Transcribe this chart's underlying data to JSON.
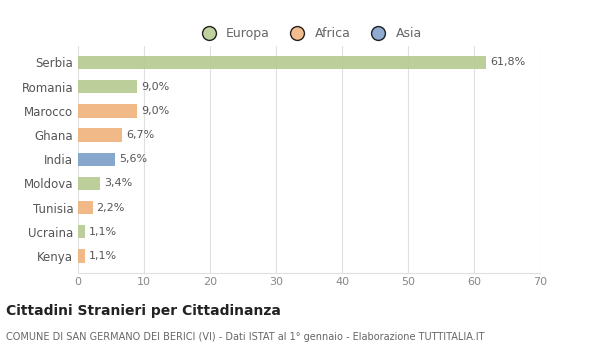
{
  "countries": [
    "Serbia",
    "Romania",
    "Marocco",
    "Ghana",
    "India",
    "Moldova",
    "Tunisia",
    "Ucraina",
    "Kenya"
  ],
  "values": [
    61.8,
    9.0,
    9.0,
    6.7,
    5.6,
    3.4,
    2.2,
    1.1,
    1.1
  ],
  "labels": [
    "61,8%",
    "9,0%",
    "9,0%",
    "6,7%",
    "5,6%",
    "3,4%",
    "2,2%",
    "1,1%",
    "1,1%"
  ],
  "colors": [
    "#b5c98e",
    "#b5c98e",
    "#f0b27a",
    "#f0b27a",
    "#7b9ec8",
    "#b5c98e",
    "#f0b27a",
    "#b5c98e",
    "#f0b27a"
  ],
  "legend_labels": [
    "Europa",
    "Africa",
    "Asia"
  ],
  "legend_colors": [
    "#b5c98e",
    "#f0b27a",
    "#7b9ec8"
  ],
  "title": "Cittadini Stranieri per Cittadinanza",
  "subtitle": "COMUNE DI SAN GERMANO DEI BERICI (VI) - Dati ISTAT al 1° gennaio - Elaborazione TUTTITALIA.IT",
  "xlim": [
    0,
    70
  ],
  "xticks": [
    0,
    10,
    20,
    30,
    40,
    50,
    60,
    70
  ],
  "bg_color": "#ffffff",
  "plot_bg_color": "#ffffff",
  "grid_color": "#e0e0e0"
}
